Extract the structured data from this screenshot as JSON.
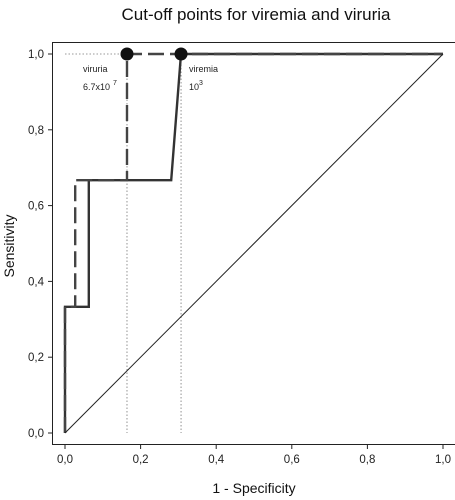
{
  "chart_data": {
    "type": "line",
    "title": "Cut-off points for viremia and viruria",
    "xlabel": "1 - Specificity",
    "ylabel": "Sensitivity",
    "xlim": [
      0,
      1
    ],
    "ylim": [
      0,
      1
    ],
    "x_ticks": [
      "0,0",
      "0,2",
      "0,4",
      "0,6",
      "0,8",
      "1,0"
    ],
    "y_ticks": [
      "0,0",
      "0,2",
      "0,4",
      "0,6",
      "0,8",
      "1,0"
    ],
    "grid": false,
    "legend": "none",
    "series": [
      {
        "style": "solid",
        "color": "#333333",
        "x": [
          0.0,
          0.0,
          0.063,
          0.063,
          0.281,
          0.307,
          1.0
        ],
        "y": [
          0.0,
          0.333,
          0.333,
          0.667,
          0.667,
          1.0,
          1.0
        ]
      },
      {
        "style": "dashed",
        "color": "#444444",
        "x": [
          0.0,
          0.0,
          0.027,
          0.027,
          0.164,
          0.164,
          1.0
        ],
        "y": [
          0.0,
          0.333,
          0.333,
          0.667,
          0.667,
          1.0,
          1.0
        ]
      },
      {
        "style": "diagonal",
        "color": "#222222",
        "x": [
          0.0,
          1.0
        ],
        "y": [
          0.0,
          1.0
        ]
      }
    ],
    "cutoff_points": [
      {
        "name": "viruria",
        "value_base": "6.7x10",
        "value_exp": "7",
        "x": 0.164,
        "y": 1.0
      },
      {
        "name": "viremia",
        "value_base": "10",
        "value_exp": "3",
        "x": 0.307,
        "y": 1.0
      }
    ]
  }
}
